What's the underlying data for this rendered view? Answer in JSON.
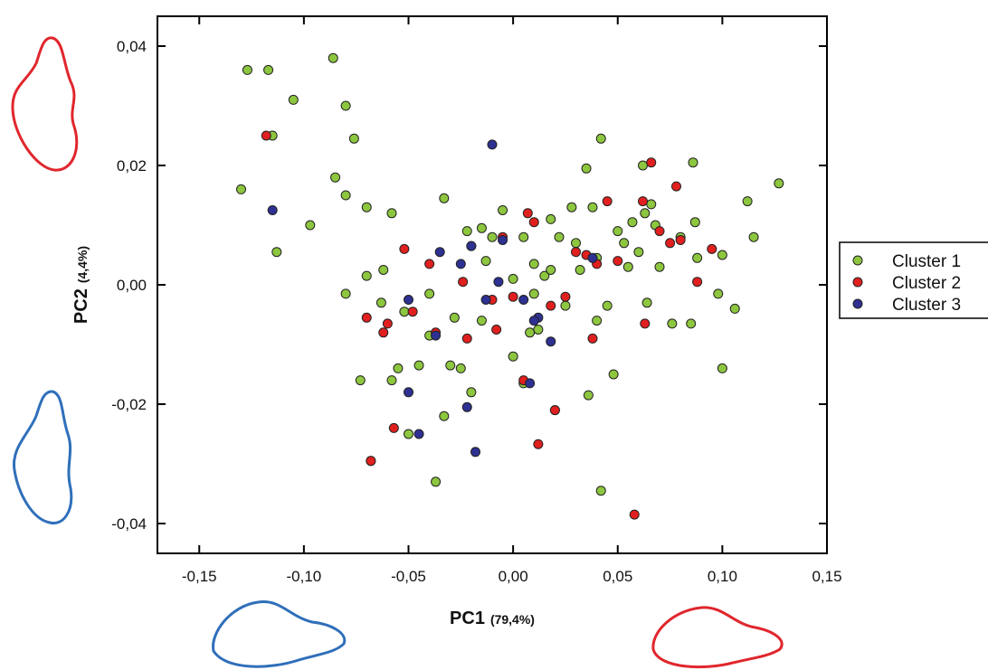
{
  "chart_data": {
    "type": "scatter",
    "xlabel": "PC1",
    "xlabel_note": "(79,4%)",
    "ylabel": "PC2",
    "ylabel_note": "(4,4%)",
    "xlim": [
      -0.17,
      0.15
    ],
    "ylim": [
      -0.045,
      0.045
    ],
    "xticks": [
      {
        "value": -0.15,
        "label": "-0,15"
      },
      {
        "value": -0.1,
        "label": "-0,10"
      },
      {
        "value": -0.05,
        "label": "-0,05"
      },
      {
        "value": 0,
        "label": "0,00"
      },
      {
        "value": 0.05,
        "label": "0,05"
      },
      {
        "value": 0.1,
        "label": "0,10"
      },
      {
        "value": 0.15,
        "label": "0,15"
      }
    ],
    "yticks": [
      {
        "value": -0.04,
        "label": "-0,04"
      },
      {
        "value": -0.02,
        "label": "-0,02"
      },
      {
        "value": 0,
        "label": "0,00"
      },
      {
        "value": 0.02,
        "label": "0,02"
      },
      {
        "value": 0.04,
        "label": "0,04"
      }
    ],
    "grid": false,
    "legend": "right",
    "series": [
      {
        "name": "Cluster 1",
        "color": "#8dc63f",
        "x": [
          -0.13,
          -0.127,
          -0.117,
          -0.115,
          -0.105,
          -0.086,
          -0.08,
          -0.076,
          -0.085,
          -0.08,
          -0.097,
          -0.113,
          -0.07,
          -0.058,
          -0.033,
          -0.08,
          -0.073,
          -0.07,
          -0.062,
          -0.063,
          -0.058,
          -0.055,
          -0.052,
          -0.05,
          -0.045,
          -0.04,
          -0.037,
          -0.033,
          -0.03,
          -0.025,
          -0.02,
          -0.015,
          -0.013,
          -0.01,
          -0.005,
          0.0,
          0.005,
          0.005,
          0.008,
          0.01,
          0.012,
          0.015,
          0.018,
          0.02,
          0.022,
          0.025,
          0.028,
          0.03,
          0.032,
          0.035,
          0.036,
          0.038,
          0.04,
          0.04,
          0.042,
          0.042,
          0.045,
          0.048,
          0.05,
          0.053,
          0.055,
          0.057,
          0.06,
          0.062,
          0.063,
          0.064,
          0.066,
          0.068,
          0.07,
          0.076,
          0.08,
          0.085,
          0.086,
          0.087,
          0.088,
          0.098,
          0.1,
          0.1,
          0.106,
          0.112,
          0.115,
          0.127,
          -0.068,
          -0.028,
          -0.015,
          0.0,
          0.01,
          -0.04,
          -0.022,
          0.018
        ],
        "y": [
          0.016,
          0.036,
          0.036,
          0.025,
          0.031,
          0.038,
          0.03,
          0.0245,
          0.018,
          0.015,
          0.01,
          0.0055,
          0.013,
          0.012,
          0.0145,
          -0.0015,
          -0.016,
          0.0015,
          0.0025,
          -0.003,
          -0.016,
          -0.014,
          -0.0045,
          -0.025,
          -0.0135,
          -0.0085,
          -0.033,
          -0.022,
          -0.0135,
          -0.014,
          -0.018,
          -0.006,
          0.004,
          0.008,
          0.0125,
          0.001,
          0.008,
          -0.0165,
          -0.008,
          0.0035,
          -0.0075,
          0.0015,
          0.011,
          -0.021,
          0.008,
          -0.0035,
          0.013,
          0.007,
          0.0025,
          0.0195,
          -0.0185,
          0.013,
          -0.006,
          0.0045,
          0.0245,
          -0.0345,
          -0.0035,
          -0.015,
          0.009,
          0.007,
          0.003,
          0.0105,
          0.0055,
          0.02,
          0.012,
          -0.003,
          0.0135,
          0.01,
          0.003,
          -0.0065,
          0.008,
          -0.0065,
          0.0205,
          0.0105,
          0.0045,
          -0.0015,
          0.005,
          -0.014,
          -0.004,
          0.014,
          0.008,
          0.017,
          -0.0295,
          -0.0055,
          0.0095,
          -0.012,
          -0.0015,
          -0.0015,
          0.009,
          0.0025
        ]
      },
      {
        "name": "Cluster 2",
        "color": "#e0201f",
        "x": [
          -0.118,
          -0.07,
          -0.068,
          -0.062,
          -0.06,
          -0.057,
          -0.052,
          -0.048,
          -0.04,
          -0.037,
          -0.024,
          -0.022,
          -0.02,
          -0.01,
          -0.008,
          -0.005,
          0.0,
          0.005,
          0.007,
          0.01,
          0.012,
          0.018,
          0.02,
          0.025,
          0.03,
          0.035,
          0.038,
          0.04,
          0.045,
          0.05,
          0.058,
          0.062,
          0.063,
          0.066,
          0.07,
          0.075,
          0.078,
          0.08,
          0.095,
          0.088
        ],
        "y": [
          0.025,
          -0.0055,
          -0.0295,
          -0.008,
          -0.0065,
          -0.024,
          0.006,
          -0.0045,
          0.0035,
          -0.008,
          0.0005,
          -0.009,
          0.0065,
          -0.0025,
          -0.0075,
          0.008,
          -0.002,
          -0.016,
          0.012,
          0.0105,
          -0.0267,
          -0.0035,
          -0.021,
          -0.002,
          0.0055,
          0.005,
          -0.009,
          0.0035,
          0.014,
          0.004,
          -0.0385,
          0.014,
          -0.0065,
          0.0205,
          0.009,
          0.007,
          0.0165,
          0.0075,
          0.006,
          0.0005
        ]
      },
      {
        "name": "Cluster 3",
        "color": "#2e3192",
        "x": [
          -0.115,
          -0.05,
          -0.05,
          -0.045,
          -0.037,
          -0.035,
          -0.025,
          -0.022,
          -0.02,
          -0.018,
          -0.013,
          -0.01,
          -0.007,
          -0.005,
          0.005,
          0.012,
          0.018,
          0.008,
          0.01,
          0.038
        ],
        "y": [
          0.0125,
          -0.018,
          -0.0025,
          -0.025,
          -0.0085,
          0.0055,
          0.0035,
          -0.0205,
          0.0065,
          -0.028,
          -0.0025,
          0.0235,
          0.0005,
          0.0075,
          -0.0025,
          -0.0055,
          -0.0095,
          -0.0165,
          -0.006,
          0.0045
        ]
      }
    ]
  }
}
